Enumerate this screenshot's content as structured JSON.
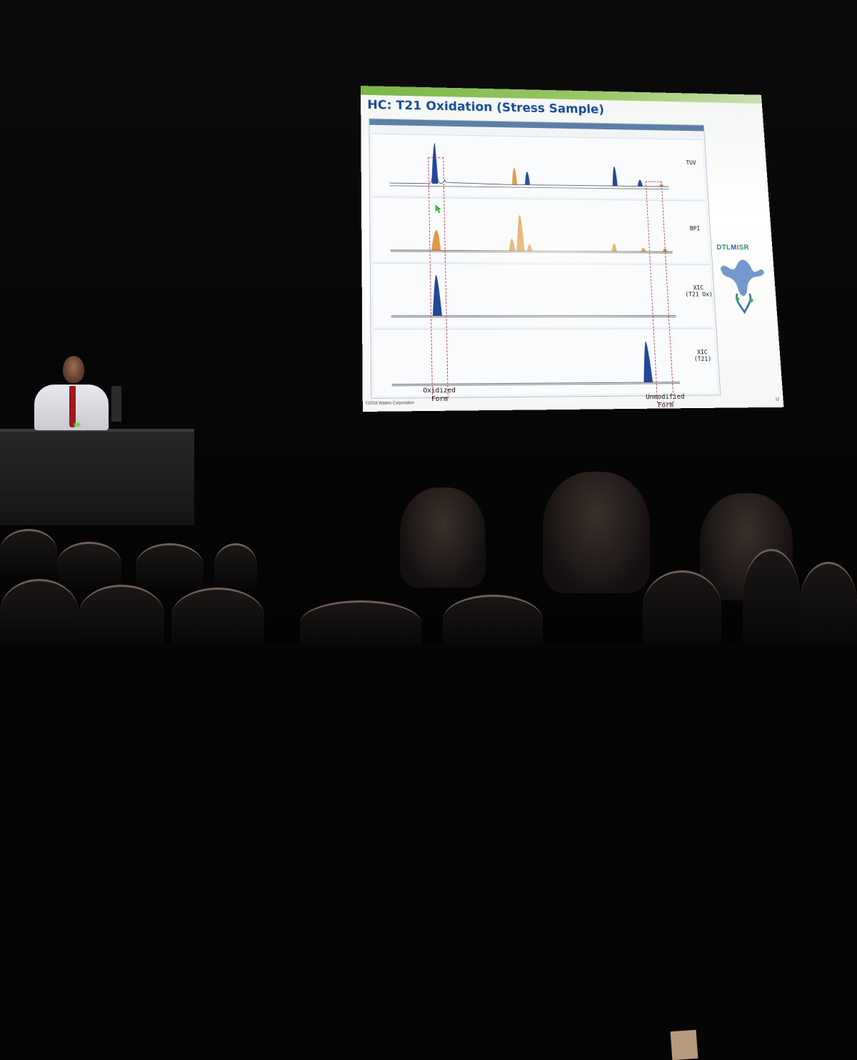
{
  "slide": {
    "title": "HC: T21 Oxidation (Stress Sample)",
    "copyright": "©2016 Waters Corporation",
    "page_number": "12",
    "logo_text": {
      "part1": "DTL",
      "part2": "M",
      "part3": "I",
      "part4": "SR"
    },
    "traces": [
      {
        "label_line1": "TUV",
        "label_line2": ""
      },
      {
        "label_line1": "BPI",
        "label_line2": ""
      },
      {
        "label_line1": "XIC",
        "label_line2": "(T21 Ox)"
      },
      {
        "label_line1": "XIC",
        "label_line2": "(T21)"
      }
    ],
    "oxidized_label_line1": "Oxidized",
    "oxidized_label_line2": "Form",
    "unmodified_label_line1": "Unmodified",
    "unmodified_label_line2": "Form"
  },
  "colors": {
    "title": "#1a4c9c",
    "peak_blue": "#24459a",
    "peak_orange": "#e39a4a",
    "box_red": "#c0374b"
  }
}
